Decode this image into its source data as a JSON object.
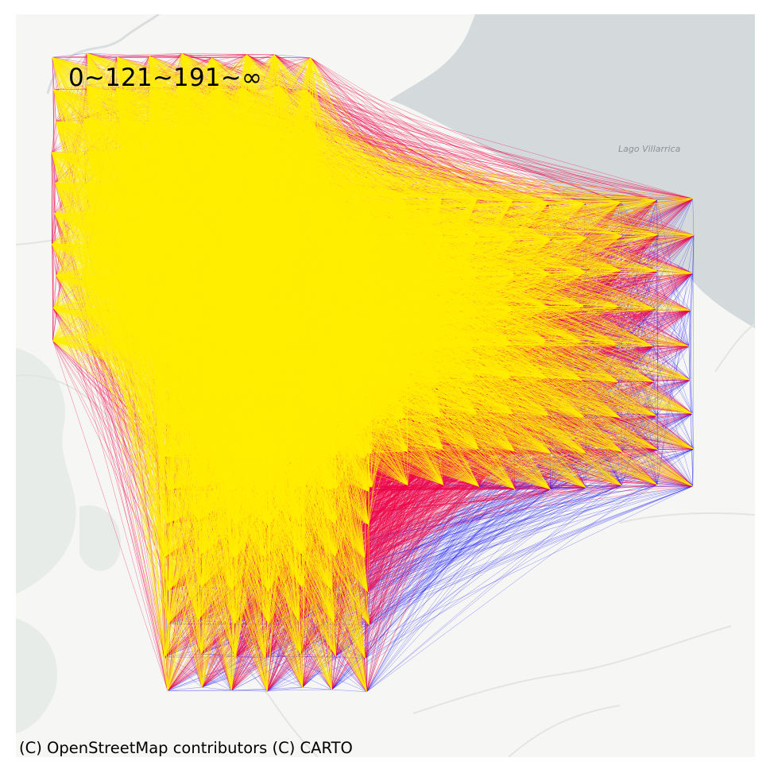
{
  "legend": {
    "bins_label": "0~121~191~∞"
  },
  "basemap": {
    "lake_label": "Lago Villarrica",
    "attribution": "(C) OpenStreetMap contributors (C) CARTO",
    "land_color": "#f6f6f4",
    "water_color": "#d4dadc",
    "road_color": "#e6e6e3",
    "vegetation_color": "#e9ece9"
  },
  "network": {
    "bins": [
      {
        "range": "0~121",
        "color": "#ffee00"
      },
      {
        "range": "121~191",
        "color": "#ee0044"
      },
      {
        "range": "191~∞",
        "color": "#0000ff"
      }
    ]
  }
}
